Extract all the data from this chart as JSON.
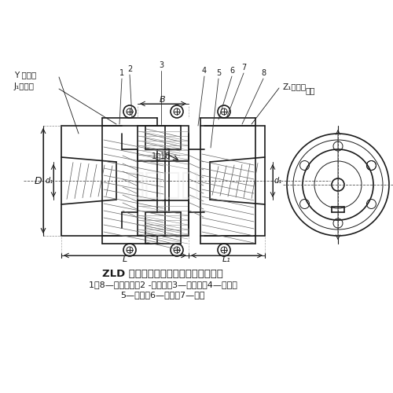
{
  "title": "ZLD 型圓錐形軸孔彈性柱銷齒式聯軸器",
  "subtitle1": "1、8—半聯軸器；2 -外擋板；3—內擋板；4—外套；",
  "subtitle2": "5—柱銷；6—螺栓；7—墊圈",
  "label_j1": "J₁型軸孔",
  "label_y": "Y 型軸孔",
  "label_z1": "Z₁型軸孔",
  "label_biaozhi": "標志",
  "label_B": "B",
  "label_taper": "1：10",
  "label_D": "D",
  "label_d1_left": "d₁",
  "label_d1_right": "d₁",
  "label_L": "L",
  "label_L1": "L₁",
  "bg_color": "#ffffff",
  "line_color": "#1a1a1a",
  "watermark_color": "#cccccc",
  "numbers": [
    "1",
    "2",
    "3",
    "4",
    "5",
    "6",
    "7",
    "8"
  ],
  "fig_width": 5.0,
  "fig_height": 5.0,
  "dpi": 100
}
